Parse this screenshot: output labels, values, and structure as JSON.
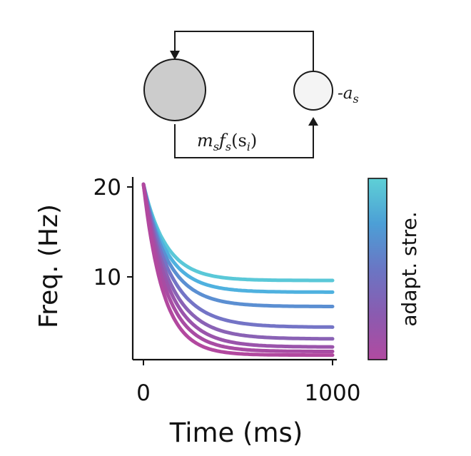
{
  "diagram": {
    "feedback_label": "m",
    "feedback_label_sub1": "s",
    "feedback_label_f": "f",
    "feedback_label_sub2": "s",
    "feedback_label_arg": "(s",
    "feedback_label_sub3": "i",
    "feedback_label_close": ")",
    "adapt_label": "-a",
    "adapt_label_sub": "s",
    "colors": {
      "big_node": "#cccccc",
      "small_node": "#f4f4f4",
      "stroke": "#1a1a1a"
    }
  },
  "chart_data": {
    "type": "line",
    "title": "",
    "xlabel": "Time (ms)",
    "ylabel": "Freq. (Hz)",
    "xlim": [
      -50,
      1020
    ],
    "ylim": [
      1,
      21
    ],
    "xticks": [
      0,
      1000
    ],
    "xtick_labels": [
      "0",
      "1000"
    ],
    "yticks": [
      10,
      20
    ],
    "ytick_labels": [
      "10",
      "20"
    ],
    "grid": false,
    "colorbar": {
      "label": "adapt. stre.",
      "colors": [
        "#b14aa0",
        "#8a5bb0",
        "#6a76c4",
        "#4c9fd6",
        "#5ed0d6"
      ]
    },
    "series": [
      {
        "color": "#5ac8d8",
        "start": 20.3,
        "end": 9.6,
        "tau": 120
      },
      {
        "color": "#4fb1df",
        "start": 20.3,
        "end": 8.3,
        "tau": 125
      },
      {
        "color": "#5b8fd2",
        "start": 20.3,
        "end": 6.7,
        "tau": 132
      },
      {
        "color": "#7474c6",
        "start": 20.3,
        "end": 4.4,
        "tau": 145
      },
      {
        "color": "#8a62b5",
        "start": 20.3,
        "end": 3.1,
        "tau": 140
      },
      {
        "color": "#9a54ab",
        "start": 20.3,
        "end": 2.2,
        "tau": 133
      },
      {
        "color": "#a84ca3",
        "start": 20.3,
        "end": 1.7,
        "tau": 120
      },
      {
        "color": "#b2489f",
        "start": 20.3,
        "end": 1.3,
        "tau": 105
      }
    ]
  }
}
